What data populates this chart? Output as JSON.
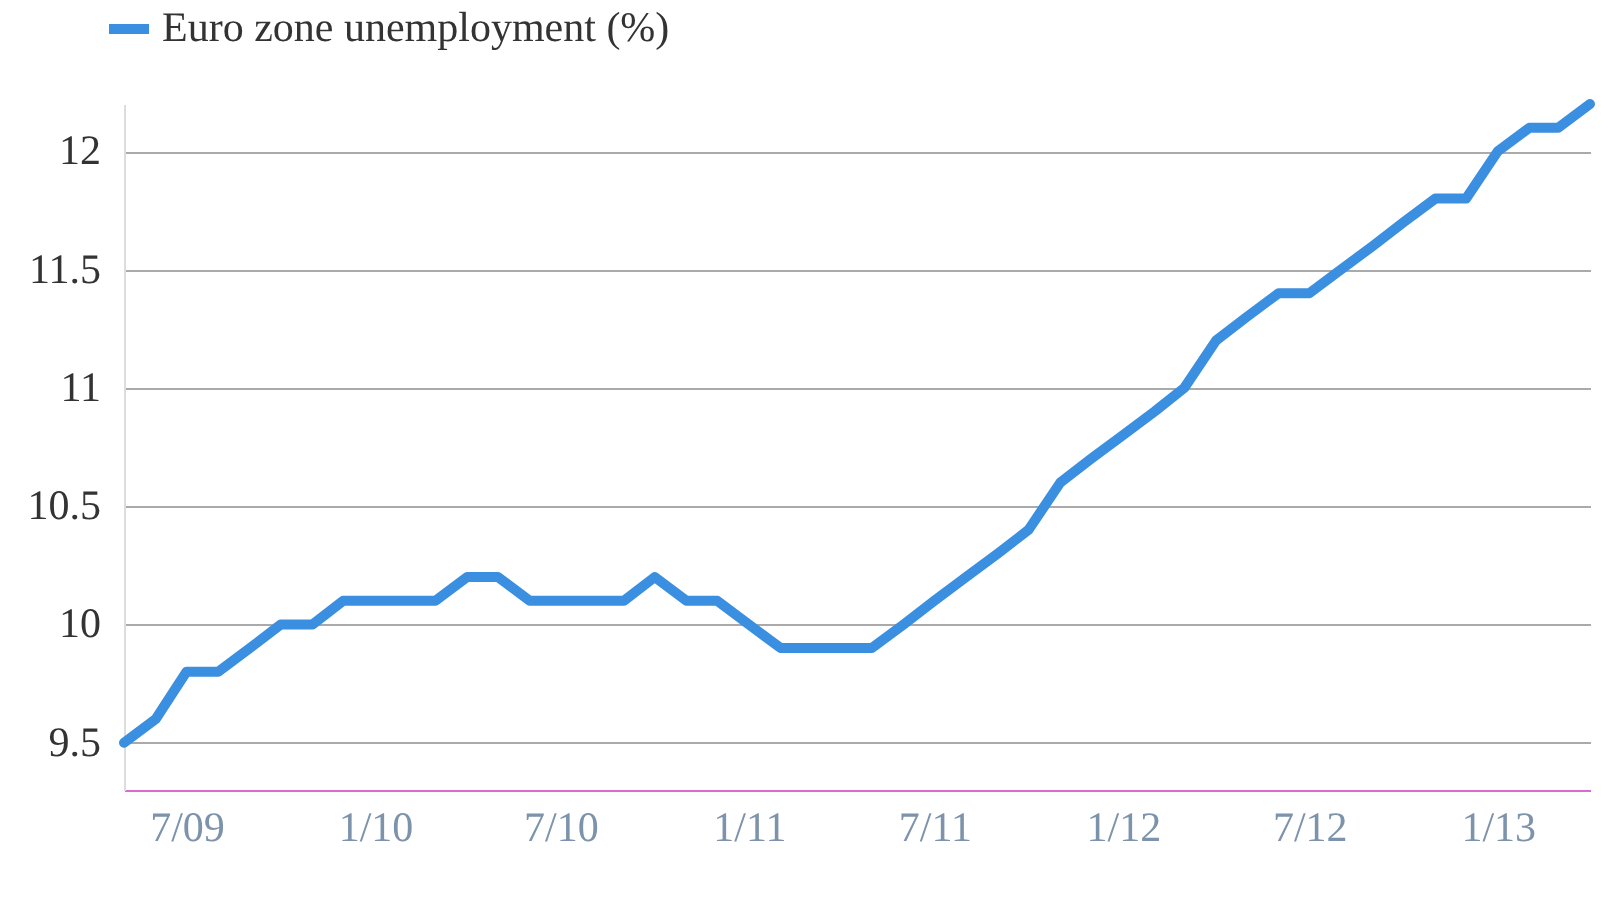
{
  "chart_data": {
    "type": "line",
    "x": [
      "2009-05",
      "2009-06",
      "2009-07",
      "2009-08",
      "2009-09",
      "2009-10",
      "2009-11",
      "2009-12",
      "2010-01",
      "2010-02",
      "2010-03",
      "2010-04",
      "2010-05",
      "2010-06",
      "2010-07",
      "2010-08",
      "2010-09",
      "2010-10",
      "2010-11",
      "2010-12",
      "2011-01",
      "2011-02",
      "2011-03",
      "2011-04",
      "2011-05",
      "2011-06",
      "2011-07",
      "2011-08",
      "2011-09",
      "2011-10",
      "2011-11",
      "2011-12",
      "2012-01",
      "2012-02",
      "2012-03",
      "2012-04",
      "2012-05",
      "2012-06",
      "2012-07",
      "2012-08",
      "2012-09",
      "2012-10",
      "2012-11",
      "2012-12",
      "2013-01",
      "2013-02",
      "2013-03",
      "2013-04"
    ],
    "series": [
      {
        "name": "Euro zone unemployment (%)",
        "color": "#3b8fe0",
        "values": [
          9.5,
          9.6,
          9.8,
          9.8,
          9.9,
          10.0,
          10.0,
          10.1,
          10.1,
          10.1,
          10.1,
          10.2,
          10.2,
          10.1,
          10.1,
          10.1,
          10.1,
          10.2,
          10.1,
          10.1,
          10.0,
          9.9,
          9.9,
          9.9,
          9.9,
          10.0,
          10.1,
          10.2,
          10.3,
          10.4,
          10.6,
          10.7,
          10.8,
          10.9,
          11.0,
          11.2,
          11.3,
          11.4,
          11.4,
          11.5,
          11.6,
          11.7,
          11.8,
          11.8,
          12.0,
          12.1,
          12.1,
          12.2
        ]
      }
    ],
    "xlim": [
      "2009-05",
      "2013-04"
    ],
    "xticks": [
      {
        "value": "2009-07",
        "label": "7/09"
      },
      {
        "value": "2010-01",
        "label": "1/10"
      },
      {
        "value": "2010-07",
        "label": "7/10"
      },
      {
        "value": "2011-01",
        "label": "1/11"
      },
      {
        "value": "2011-07",
        "label": "7/11"
      },
      {
        "value": "2012-01",
        "label": "1/12"
      },
      {
        "value": "2012-07",
        "label": "7/12"
      },
      {
        "value": "2013-01",
        "label": "1/13"
      }
    ],
    "ylim": [
      9.3,
      12.2
    ],
    "yticks": [
      9.5,
      10,
      10.5,
      11,
      11.5,
      12
    ],
    "grid": "y",
    "legend": "top left",
    "marker": "none",
    "line_style": "solid"
  }
}
